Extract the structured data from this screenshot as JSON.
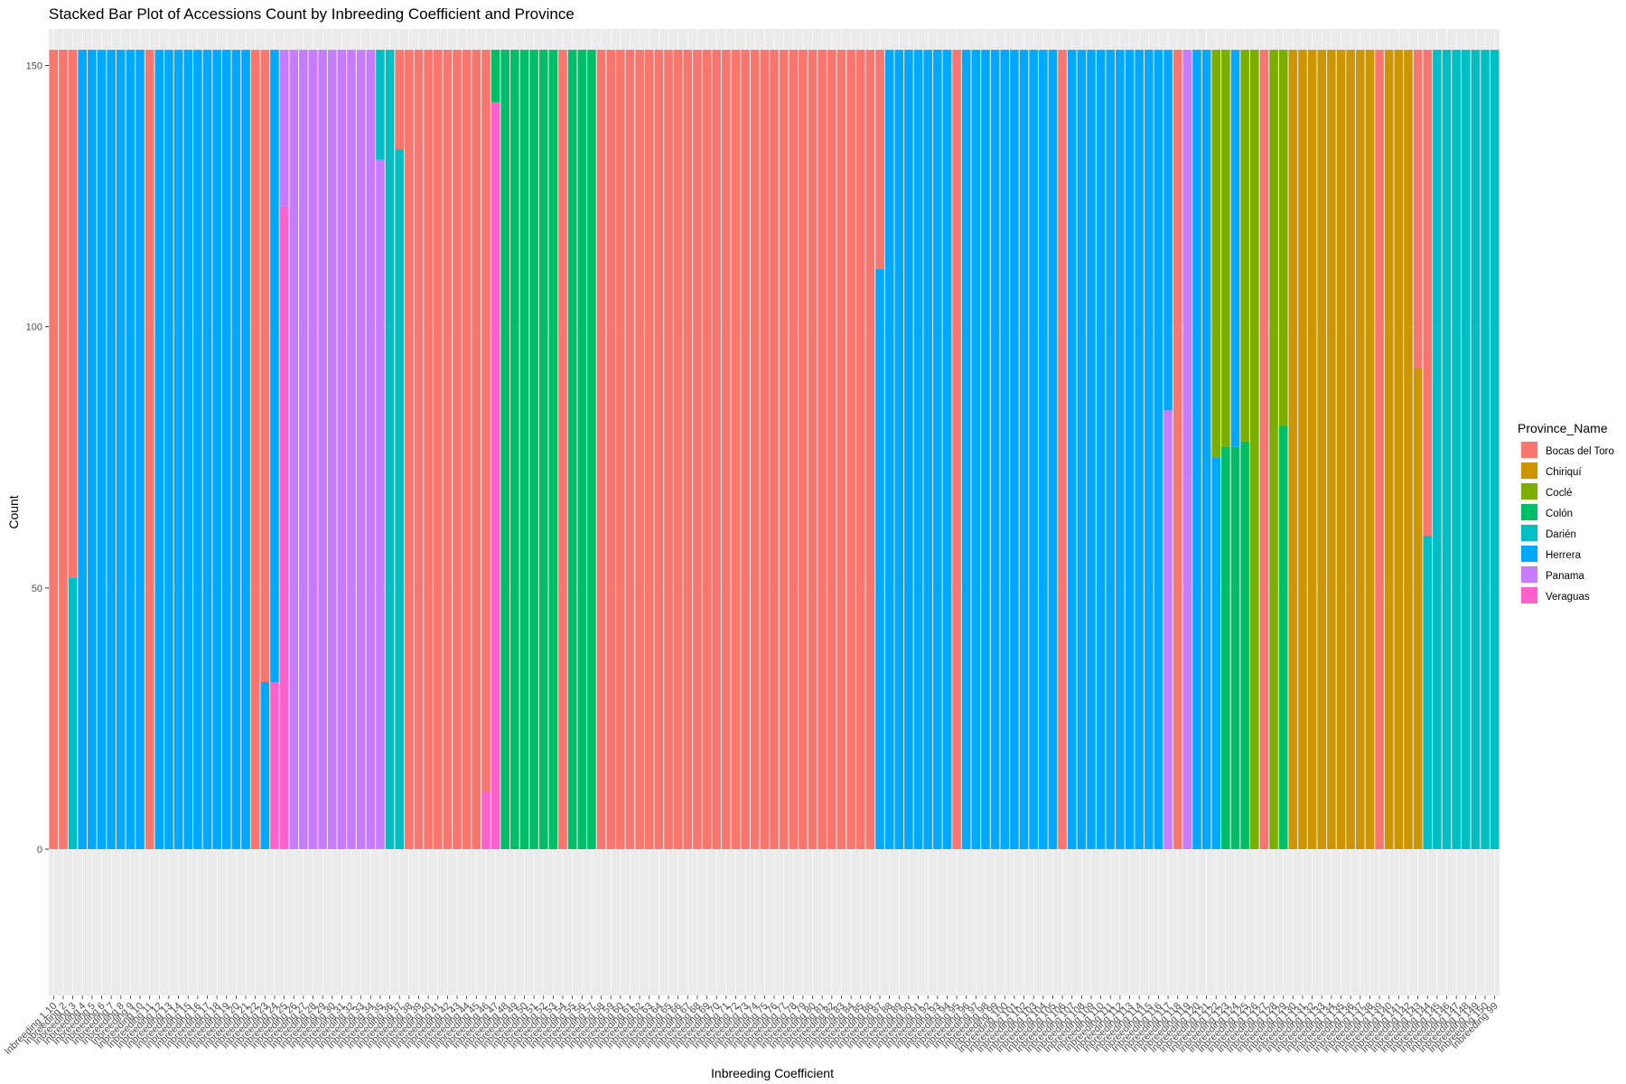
{
  "chart_data": {
    "type": "bar",
    "stacked": true,
    "title": "Stacked Bar Plot of Accessions Count by Inbreeding Coefficient and Province",
    "xlabel": "Inbreeding Coefficient",
    "ylabel": "Count",
    "ylim": [
      -28,
      157
    ],
    "yticks": [
      0,
      50,
      100,
      150
    ],
    "legend": {
      "title": "Province_Name",
      "position": "right",
      "entries": [
        {
          "name": "Bocas del Toro",
          "color": "#F8766D"
        },
        {
          "name": "Chiriquí",
          "color": "#CD9600"
        },
        {
          "name": "Coclé",
          "color": "#7CAE00"
        },
        {
          "name": "Colón",
          "color": "#00BE67"
        },
        {
          "name": "Darién",
          "color": "#00BFC4"
        },
        {
          "name": "Herrera",
          "color": "#00A9FF"
        },
        {
          "name": "Panama",
          "color": "#C77CFF"
        },
        {
          "name": "Veraguas",
          "color": "#FF61CC"
        }
      ]
    },
    "total_per_bar": 153,
    "categories_first": [
      "Inbreeding 1.10"
    ],
    "categories_last": [
      "Inbreeding 99"
    ],
    "runs": [
      {
        "n": 2,
        "segs": [
          [
            0,
            153
          ]
        ]
      },
      {
        "n": 1,
        "segs": [
          [
            4,
            52
          ],
          [
            0,
            101
          ]
        ]
      },
      {
        "n": 7,
        "segs": [
          [
            5,
            153
          ]
        ]
      },
      {
        "n": 1,
        "segs": [
          [
            0,
            153
          ]
        ]
      },
      {
        "n": 10,
        "segs": [
          [
            5,
            153
          ]
        ]
      },
      {
        "n": 1,
        "segs": [
          [
            0,
            153
          ]
        ]
      },
      {
        "n": 1,
        "segs": [
          [
            5,
            32
          ],
          [
            0,
            121
          ]
        ]
      },
      {
        "n": 1,
        "segs": [
          [
            7,
            32
          ],
          [
            5,
            121
          ]
        ]
      },
      {
        "n": 1,
        "segs": [
          [
            7,
            123
          ],
          [
            6,
            30
          ]
        ]
      },
      {
        "n": 7,
        "segs": [
          [
            6,
            153
          ]
        ]
      },
      {
        "n": 2,
        "segs": [
          [
            6,
            153
          ]
        ]
      },
      {
        "n": 1,
        "segs": [
          [
            6,
            132
          ],
          [
            4,
            21
          ]
        ]
      },
      {
        "n": 1,
        "segs": [
          [
            4,
            153
          ]
        ]
      },
      {
        "n": 1,
        "segs": [
          [
            4,
            134
          ],
          [
            0,
            19
          ]
        ]
      },
      {
        "n": 8,
        "segs": [
          [
            0,
            153
          ]
        ]
      },
      {
        "n": 1,
        "segs": [
          [
            7,
            11
          ],
          [
            0,
            142
          ]
        ]
      },
      {
        "n": 1,
        "segs": [
          [
            7,
            143
          ],
          [
            3,
            10
          ]
        ]
      },
      {
        "n": 6,
        "segs": [
          [
            3,
            153
          ]
        ]
      },
      {
        "n": 1,
        "segs": [
          [
            0,
            153
          ]
        ]
      },
      {
        "n": 3,
        "segs": [
          [
            3,
            153
          ]
        ]
      },
      {
        "n": 29,
        "segs": [
          [
            0,
            153
          ]
        ]
      },
      {
        "n": 1,
        "segs": [
          [
            5,
            111
          ],
          [
            0,
            42
          ]
        ]
      },
      {
        "n": 7,
        "segs": [
          [
            5,
            153
          ]
        ]
      },
      {
        "n": 1,
        "segs": [
          [
            0,
            153
          ]
        ]
      },
      {
        "n": 10,
        "segs": [
          [
            5,
            153
          ]
        ]
      },
      {
        "n": 1,
        "segs": [
          [
            0,
            153
          ]
        ]
      },
      {
        "n": 10,
        "segs": [
          [
            5,
            153
          ]
        ]
      },
      {
        "n": 1,
        "segs": [
          [
            6,
            84
          ],
          [
            5,
            69
          ]
        ]
      },
      {
        "n": 1,
        "segs": [
          [
            0,
            153
          ]
        ]
      },
      {
        "n": 1,
        "segs": [
          [
            6,
            71
          ],
          [
            6,
            82
          ]
        ]
      },
      {
        "n": 2,
        "segs": [
          [
            5,
            153
          ]
        ]
      },
      {
        "n": 1,
        "segs": [
          [
            5,
            75
          ],
          [
            2,
            78
          ]
        ]
      },
      {
        "n": 1,
        "segs": [
          [
            3,
            77
          ],
          [
            2,
            76
          ]
        ]
      },
      {
        "n": 1,
        "segs": [
          [
            3,
            77
          ],
          [
            5,
            76
          ]
        ]
      },
      {
        "n": 1,
        "segs": [
          [
            3,
            78
          ],
          [
            2,
            75
          ]
        ]
      },
      {
        "n": 1,
        "segs": [
          [
            2,
            153
          ]
        ]
      },
      {
        "n": 1,
        "segs": [
          [
            0,
            153
          ]
        ]
      },
      {
        "n": 1,
        "segs": [
          [
            2,
            153
          ]
        ]
      },
      {
        "n": 1,
        "segs": [
          [
            3,
            81
          ],
          [
            2,
            72
          ]
        ]
      },
      {
        "n": 9,
        "segs": [
          [
            1,
            153
          ]
        ]
      },
      {
        "n": 1,
        "segs": [
          [
            0,
            153
          ]
        ]
      },
      {
        "n": 3,
        "segs": [
          [
            1,
            153
          ]
        ]
      },
      {
        "n": 1,
        "segs": [
          [
            1,
            92
          ],
          [
            0,
            61
          ]
        ]
      },
      {
        "n": 1,
        "segs": [
          [
            4,
            60
          ],
          [
            0,
            93
          ]
        ]
      },
      {
        "n": 7,
        "segs": [
          [
            4,
            153
          ]
        ]
      }
    ]
  }
}
